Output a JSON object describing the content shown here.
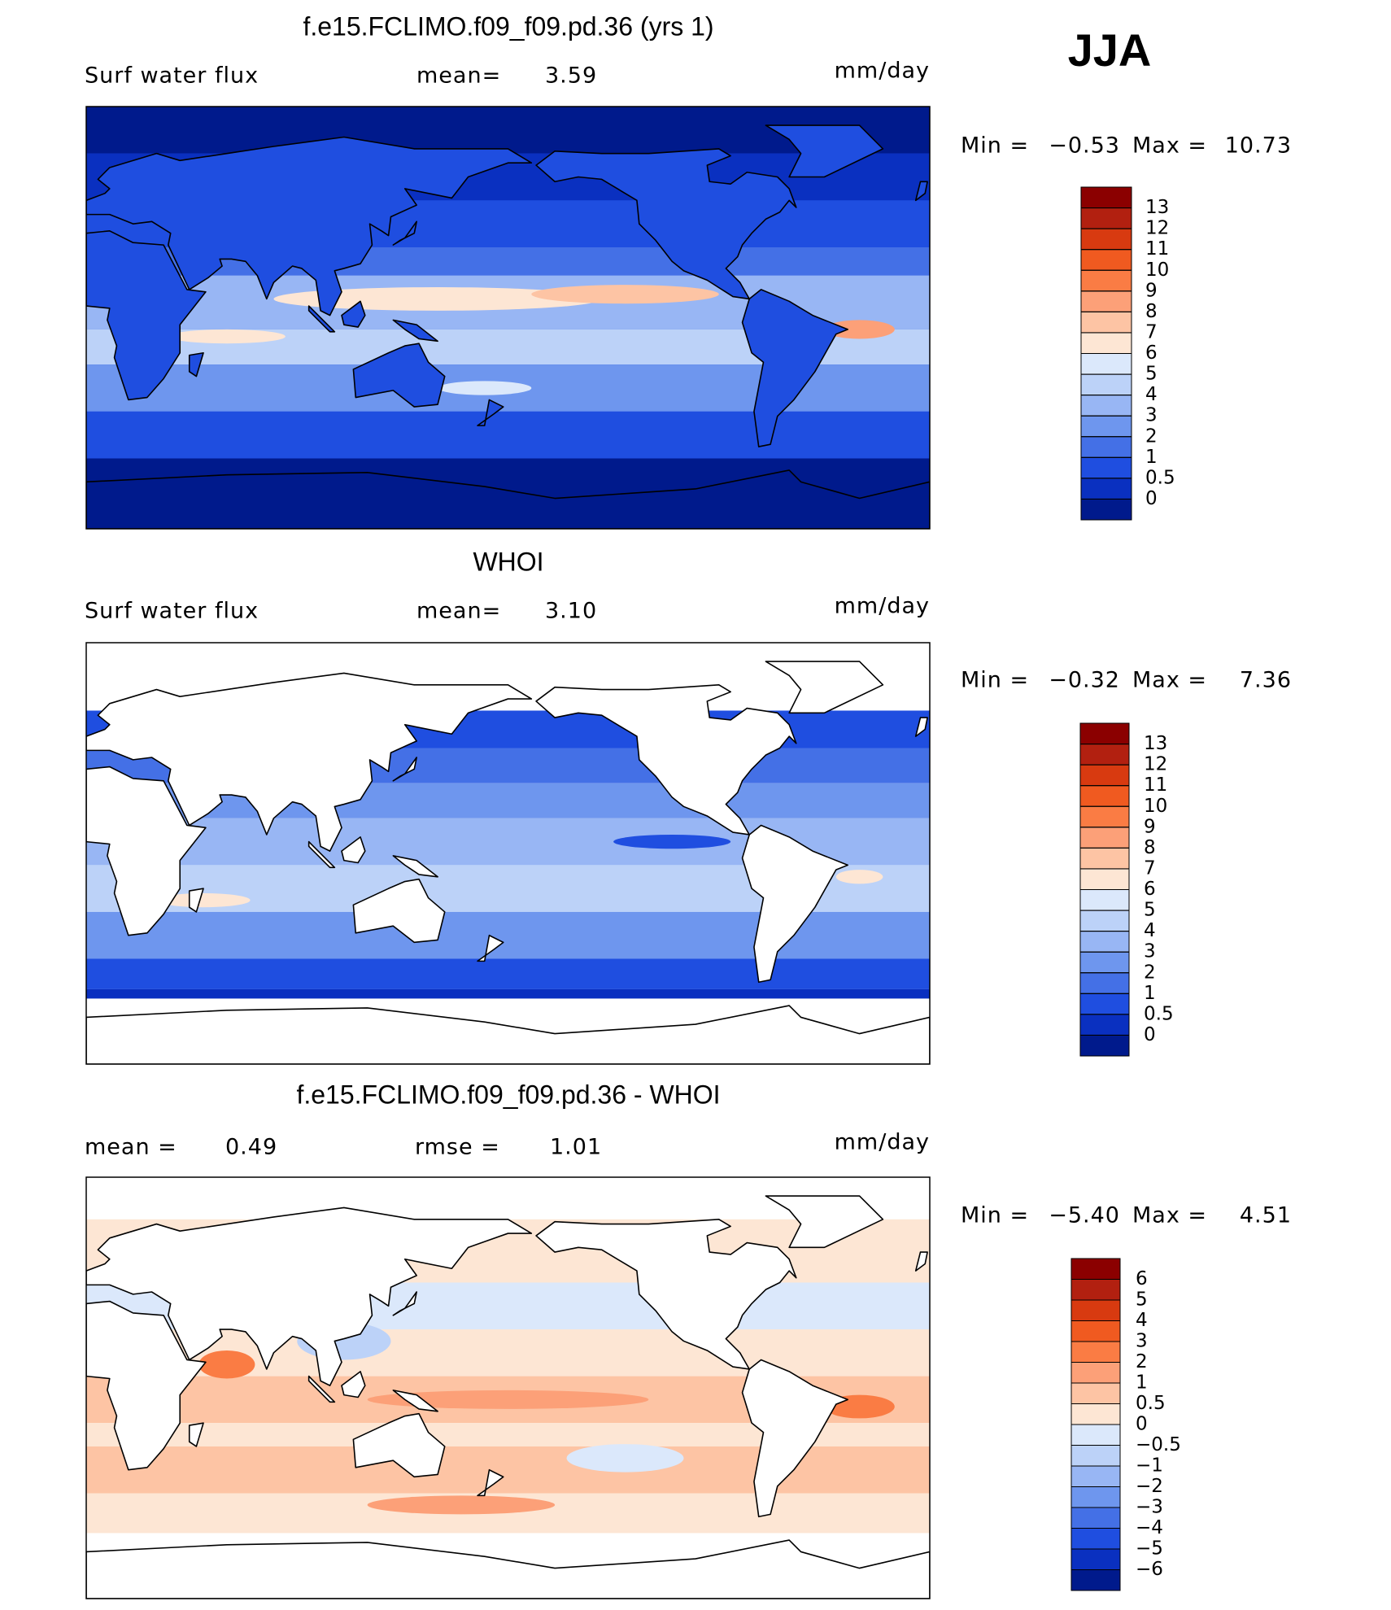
{
  "header": {
    "season": "JJA"
  },
  "panels": [
    {
      "title": "f.e15.FCLIMO.f09_f09.pd.36 (yrs 1)",
      "left_label": "Surf water flux",
      "mid_label": "mean=",
      "mid_value": "3.59",
      "units": "mm/day",
      "min_label": "Min =",
      "min_value": "−0.53",
      "max_label": "Max =",
      "max_value": "10.73",
      "colorbar": {
        "levels": [
          13,
          12,
          11,
          10,
          9,
          8,
          7,
          6,
          5,
          4,
          3,
          2,
          1,
          0.5,
          0
        ],
        "colors": [
          "#8b0000",
          "#b22010",
          "#d83a10",
          "#f05a20",
          "#fa7c44",
          "#fca078",
          "#fdc4a4",
          "#fde6d4",
          "#dbe8fb",
          "#bcd2f8",
          "#98b6f4",
          "#6e96ee",
          "#4470e6",
          "#1f4ee0",
          "#0a30c0",
          "#001a8c"
        ]
      }
    },
    {
      "title": "WHOI",
      "left_label": "Surf water flux",
      "mid_label": "mean=",
      "mid_value": "3.10",
      "units": "mm/day",
      "min_label": "Min =",
      "min_value": "−0.32",
      "max_label": "Max =",
      "max_value": "7.36",
      "colorbar": {
        "levels": [
          13,
          12,
          11,
          10,
          9,
          8,
          7,
          6,
          5,
          4,
          3,
          2,
          1,
          0.5,
          0
        ],
        "colors": [
          "#8b0000",
          "#b22010",
          "#d83a10",
          "#f05a20",
          "#fa7c44",
          "#fca078",
          "#fdc4a4",
          "#fde6d4",
          "#dbe8fb",
          "#bcd2f8",
          "#98b6f4",
          "#6e96ee",
          "#4470e6",
          "#1f4ee0",
          "#0a30c0",
          "#001a8c"
        ]
      }
    },
    {
      "title": "f.e15.FCLIMO.f09_f09.pd.36 - WHOI",
      "left_label": "mean =",
      "left_value": "0.49",
      "mid_label": "rmse =",
      "mid_value": "1.01",
      "units": "mm/day",
      "min_label": "Min =",
      "min_value": "−5.40",
      "max_label": "Max =",
      "max_value": "4.51",
      "colorbar": {
        "levels": [
          6,
          5,
          4,
          3,
          2,
          1,
          0.5,
          0,
          {
            "value": -0.5,
            "label": "−0.5"
          },
          {
            "value": -1,
            "label": "−1"
          },
          {
            "value": -2,
            "label": "−2"
          },
          {
            "value": -3,
            "label": "−3"
          },
          {
            "value": -4,
            "label": "−4"
          },
          {
            "value": -5,
            "label": "−5"
          },
          {
            "value": -6,
            "label": "−6"
          }
        ],
        "colors": [
          "#8b0000",
          "#b22010",
          "#d83a10",
          "#f05a20",
          "#fa7c44",
          "#fca078",
          "#fdc4a4",
          "#fde6d4",
          "#dbe8fb",
          "#bcd2f8",
          "#98b6f4",
          "#6e96ee",
          "#4470e6",
          "#1f4ee0",
          "#0a30c0",
          "#001a8c"
        ]
      }
    }
  ]
}
